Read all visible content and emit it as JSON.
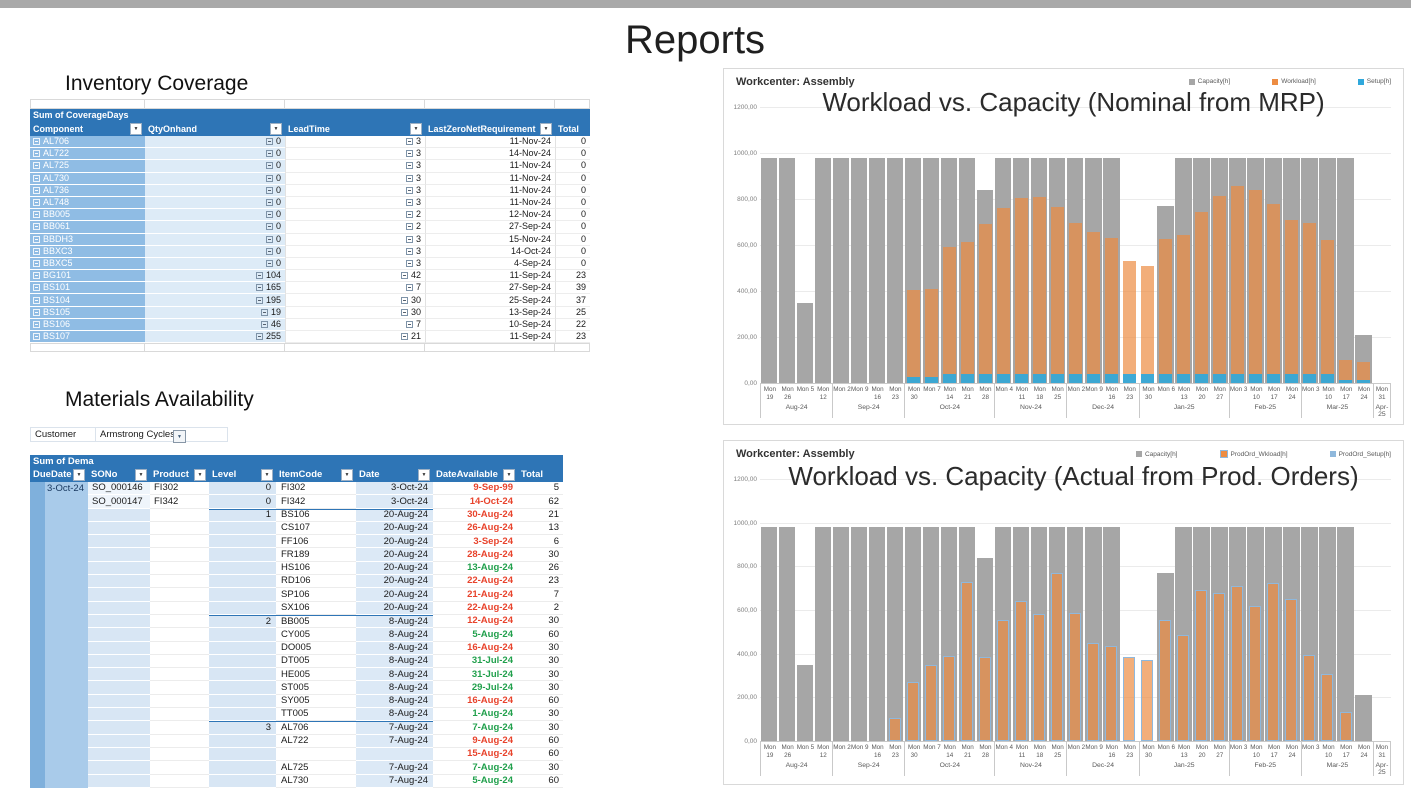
{
  "page": {
    "title": "Reports"
  },
  "colors": {
    "header_blue": "#2E75B6",
    "row_label_blue": "#8FBCE4",
    "light_cell_blue": "#DDEBF7",
    "capacity": "#A6A6A6",
    "workload": "#ED8C42",
    "setup": "#2FA8DC",
    "prodord_border": "#8FB8DC",
    "late_red": "#E8432C",
    "ontime_green": "#21A04C"
  },
  "inventory": {
    "heading": "Inventory Coverage",
    "pivot_title": "Sum of CoverageDays",
    "columns": [
      "Component",
      "QtyOnhand",
      "LeadTime",
      "LastZeroNetRequirement",
      "Total"
    ],
    "rows": [
      {
        "c": "AL706",
        "q": "0",
        "l": "3",
        "z": "11-Nov-24",
        "t": "0"
      },
      {
        "c": "AL722",
        "q": "0",
        "l": "3",
        "z": "14-Nov-24",
        "t": "0"
      },
      {
        "c": "AL725",
        "q": "0",
        "l": "3",
        "z": "11-Nov-24",
        "t": "0"
      },
      {
        "c": "AL730",
        "q": "0",
        "l": "3",
        "z": "11-Nov-24",
        "t": "0"
      },
      {
        "c": "AL736",
        "q": "0",
        "l": "3",
        "z": "11-Nov-24",
        "t": "0"
      },
      {
        "c": "AL748",
        "q": "0",
        "l": "3",
        "z": "11-Nov-24",
        "t": "0"
      },
      {
        "c": "BB005",
        "q": "0",
        "l": "2",
        "z": "12-Nov-24",
        "t": "0"
      },
      {
        "c": "BB061",
        "q": "0",
        "l": "2",
        "z": "27-Sep-24",
        "t": "0"
      },
      {
        "c": "BBDH3",
        "q": "0",
        "l": "3",
        "z": "15-Nov-24",
        "t": "0"
      },
      {
        "c": "BBXC3",
        "q": "0",
        "l": "3",
        "z": "14-Oct-24",
        "t": "0"
      },
      {
        "c": "BBXC5",
        "q": "0",
        "l": "3",
        "z": "4-Sep-24",
        "t": "0"
      },
      {
        "c": "BG101",
        "q": "104",
        "l": "42",
        "z": "11-Sep-24",
        "t": "23"
      },
      {
        "c": "BS101",
        "q": "165",
        "l": "7",
        "z": "27-Sep-24",
        "t": "39"
      },
      {
        "c": "BS104",
        "q": "195",
        "l": "30",
        "z": "25-Sep-24",
        "t": "37"
      },
      {
        "c": "BS105",
        "q": "19",
        "l": "30",
        "z": "13-Sep-24",
        "t": "25"
      },
      {
        "c": "BS106",
        "q": "46",
        "l": "7",
        "z": "10-Sep-24",
        "t": "22"
      },
      {
        "c": "BS107",
        "q": "255",
        "l": "21",
        "z": "11-Sep-24",
        "t": "23"
      }
    ]
  },
  "materials": {
    "heading": "Materials Availability",
    "filter_label": "Customer",
    "filter_value": "Armstrong Cycles",
    "pivot_title": "Sum of Dema",
    "columns": [
      "DueDate",
      "SONo",
      "Product",
      "Level",
      "ItemCode",
      "Date",
      "DateAvailable",
      "Total"
    ],
    "rows": [
      {
        "due": "3-Oct-24",
        "so": "SO_000146",
        "product": "FI302",
        "level": "0",
        "item": "FI302",
        "date": "3-Oct-24",
        "avail": "9-Sep-99",
        "status": "late",
        "total": "5",
        "gs": false
      },
      {
        "due": "",
        "so": "SO_000147",
        "product": "FI342",
        "level": "0",
        "item": "FI342",
        "date": "3-Oct-24",
        "avail": "14-Oct-24",
        "status": "late",
        "total": "62",
        "gs": false
      },
      {
        "due": "",
        "so": "",
        "product": "",
        "level": "1",
        "item": "BS106",
        "date": "20-Aug-24",
        "avail": "30-Aug-24",
        "status": "late",
        "total": "21",
        "gs": true
      },
      {
        "due": "",
        "so": "",
        "product": "",
        "level": "",
        "item": "CS107",
        "date": "20-Aug-24",
        "avail": "26-Aug-24",
        "status": "late",
        "total": "13",
        "gs": false
      },
      {
        "due": "",
        "so": "",
        "product": "",
        "level": "",
        "item": "FF106",
        "date": "20-Aug-24",
        "avail": "3-Sep-24",
        "status": "late",
        "total": "6",
        "gs": false
      },
      {
        "due": "",
        "so": "",
        "product": "",
        "level": "",
        "item": "FR189",
        "date": "20-Aug-24",
        "avail": "28-Aug-24",
        "status": "late",
        "total": "30",
        "gs": false
      },
      {
        "due": "",
        "so": "",
        "product": "",
        "level": "",
        "item": "HS106",
        "date": "20-Aug-24",
        "avail": "13-Aug-24",
        "status": "ontime",
        "total": "26",
        "gs": false
      },
      {
        "due": "",
        "so": "",
        "product": "",
        "level": "",
        "item": "RD106",
        "date": "20-Aug-24",
        "avail": "22-Aug-24",
        "status": "late",
        "total": "23",
        "gs": false
      },
      {
        "due": "",
        "so": "",
        "product": "",
        "level": "",
        "item": "SP106",
        "date": "20-Aug-24",
        "avail": "21-Aug-24",
        "status": "late",
        "total": "7",
        "gs": false
      },
      {
        "due": "",
        "so": "",
        "product": "",
        "level": "",
        "item": "SX106",
        "date": "20-Aug-24",
        "avail": "22-Aug-24",
        "status": "late",
        "total": "2",
        "gs": false
      },
      {
        "due": "",
        "so": "",
        "product": "",
        "level": "2",
        "item": "BB005",
        "date": "8-Aug-24",
        "avail": "12-Aug-24",
        "status": "late",
        "total": "30",
        "gs": true
      },
      {
        "due": "",
        "so": "",
        "product": "",
        "level": "",
        "item": "CY005",
        "date": "8-Aug-24",
        "avail": "5-Aug-24",
        "status": "ontime",
        "total": "60",
        "gs": false
      },
      {
        "due": "",
        "so": "",
        "product": "",
        "level": "",
        "item": "DO005",
        "date": "8-Aug-24",
        "avail": "16-Aug-24",
        "status": "late",
        "total": "30",
        "gs": false
      },
      {
        "due": "",
        "so": "",
        "product": "",
        "level": "",
        "item": "DT005",
        "date": "8-Aug-24",
        "avail": "31-Jul-24",
        "status": "ontime",
        "total": "30",
        "gs": false
      },
      {
        "due": "",
        "so": "",
        "product": "",
        "level": "",
        "item": "HE005",
        "date": "8-Aug-24",
        "avail": "31-Jul-24",
        "status": "ontime",
        "total": "30",
        "gs": false
      },
      {
        "due": "",
        "so": "",
        "product": "",
        "level": "",
        "item": "ST005",
        "date": "8-Aug-24",
        "avail": "29-Jul-24",
        "status": "ontime",
        "total": "30",
        "gs": false
      },
      {
        "due": "",
        "so": "",
        "product": "",
        "level": "",
        "item": "SY005",
        "date": "8-Aug-24",
        "avail": "16-Aug-24",
        "status": "late",
        "total": "60",
        "gs": false
      },
      {
        "due": "",
        "so": "",
        "product": "",
        "level": "",
        "item": "TT005",
        "date": "8-Aug-24",
        "avail": "1-Aug-24",
        "status": "ontime",
        "total": "30",
        "gs": false
      },
      {
        "due": "",
        "so": "",
        "product": "",
        "level": "3",
        "item": "AL706",
        "date": "7-Aug-24",
        "avail": "7-Aug-24",
        "status": "ontime",
        "total": "30",
        "gs": true
      },
      {
        "due": "",
        "so": "",
        "product": "",
        "level": "",
        "item": "AL722",
        "date": "7-Aug-24",
        "avail": "9-Aug-24",
        "status": "late",
        "total": "60",
        "gs": false
      },
      {
        "due": "",
        "so": "",
        "product": "",
        "level": "",
        "item": "",
        "date": "",
        "avail": "15-Aug-24",
        "status": "late",
        "total": "60",
        "gs": false
      },
      {
        "due": "",
        "so": "",
        "product": "",
        "level": "",
        "item": "AL725",
        "date": "7-Aug-24",
        "avail": "7-Aug-24",
        "status": "ontime",
        "total": "30",
        "gs": false
      },
      {
        "due": "",
        "so": "",
        "product": "",
        "level": "",
        "item": "AL730",
        "date": "7-Aug-24",
        "avail": "5-Aug-24",
        "status": "ontime",
        "total": "60",
        "gs": false
      }
    ]
  },
  "chart_data": [
    {
      "type": "bar",
      "title": "Workcenter: Assembly",
      "overlay_title": "Workload vs. Capacity (Nominal from MRP)",
      "legend": [
        "Capacity[h]",
        "Workload[h]",
        "Setup[h]"
      ],
      "ylim": [
        0,
        1200
      ],
      "ytick_labels": [
        "1200,00",
        "1000,00",
        "800,00",
        "600,00",
        "400,00",
        "200,00",
        "0,00"
      ],
      "grid": true,
      "legend_position": "top-right",
      "month_groups": [
        {
          "label": "Aug-24",
          "count": 4
        },
        {
          "label": "Sep-24",
          "count": 4
        },
        {
          "label": "Oct-24",
          "count": 5
        },
        {
          "label": "Nov-24",
          "count": 4
        },
        {
          "label": "Dec-24",
          "count": 4
        },
        {
          "label": "Jan-25",
          "count": 5
        },
        {
          "label": "Feb-25",
          "count": 4
        },
        {
          "label": "Mar-25",
          "count": 4
        },
        {
          "label": "Apr-25",
          "count": 1
        }
      ],
      "x": [
        "Mon\n19",
        "Mon\n26",
        "Mon 5",
        "Mon\n12",
        "Mon 2",
        "Mon 9",
        "Mon\n16",
        "Mon\n23",
        "Mon\n30",
        "Mon 7",
        "Mon\n14",
        "Mon\n21",
        "Mon\n28",
        "Mon 4",
        "Mon\n11",
        "Mon\n18",
        "Mon\n25",
        "Mon 2",
        "Mon 9",
        "Mon\n16",
        "Mon\n23",
        "Mon\n30",
        "Mon 6",
        "Mon\n13",
        "Mon\n20",
        "Mon\n27",
        "Mon 3",
        "Mon\n10",
        "Mon\n17",
        "Mon\n24",
        "Mon 3",
        "Mon\n10",
        "Mon\n17",
        "Mon\n24",
        "Mon\n31"
      ],
      "series": [
        {
          "name": "Capacity[h]",
          "values": [
            980,
            980,
            350,
            980,
            980,
            980,
            980,
            980,
            980,
            980,
            980,
            980,
            840,
            980,
            980,
            980,
            980,
            980,
            980,
            980,
            0,
            0,
            770,
            980,
            980,
            980,
            980,
            980,
            980,
            980,
            980,
            980,
            980,
            210,
            0
          ]
        },
        {
          "name": "Workload[h]",
          "values": [
            0,
            0,
            0,
            0,
            0,
            0,
            0,
            0,
            405,
            410,
            590,
            615,
            690,
            760,
            805,
            810,
            765,
            695,
            655,
            630,
            530,
            510,
            625,
            645,
            745,
            815,
            855,
            840,
            780,
            710,
            695,
            620,
            100,
            90,
            0
          ]
        },
        {
          "name": "Setup[h]",
          "values": [
            0,
            0,
            0,
            0,
            0,
            0,
            0,
            0,
            28,
            28,
            40,
            40,
            40,
            40,
            40,
            40,
            40,
            40,
            40,
            40,
            40,
            40,
            40,
            40,
            40,
            40,
            40,
            40,
            40,
            40,
            40,
            40,
            15,
            15,
            0
          ]
        }
      ]
    },
    {
      "type": "bar",
      "title": "Workcenter: Assembly",
      "overlay_title": "Workload vs. Capacity (Actual from Prod. Orders)",
      "legend": [
        "Capacity[h]",
        "ProdOrd_Wkload[h]",
        "ProdOrd_Setup[h]"
      ],
      "ylim": [
        0,
        1200
      ],
      "ytick_labels": [
        "1200,00",
        "1000,00",
        "800,00",
        "600,00",
        "400,00",
        "200,00",
        "0,00"
      ],
      "grid": true,
      "legend_position": "top-right",
      "month_groups": [
        {
          "label": "Aug-24",
          "count": 4
        },
        {
          "label": "Sep-24",
          "count": 4
        },
        {
          "label": "Oct-24",
          "count": 5
        },
        {
          "label": "Nov-24",
          "count": 4
        },
        {
          "label": "Dec-24",
          "count": 4
        },
        {
          "label": "Jan-25",
          "count": 5
        },
        {
          "label": "Feb-25",
          "count": 4
        },
        {
          "label": "Mar-25",
          "count": 4
        },
        {
          "label": "Apr-25",
          "count": 1
        }
      ],
      "x": [
        "Mon\n19",
        "Mon\n26",
        "Mon 5",
        "Mon\n12",
        "Mon 2",
        "Mon 9",
        "Mon\n16",
        "Mon\n23",
        "Mon\n30",
        "Mon 7",
        "Mon\n14",
        "Mon\n21",
        "Mon\n28",
        "Mon 4",
        "Mon\n11",
        "Mon\n18",
        "Mon\n25",
        "Mon 2",
        "Mon 9",
        "Mon\n16",
        "Mon\n23",
        "Mon\n30",
        "Mon 6",
        "Mon\n13",
        "Mon\n20",
        "Mon\n27",
        "Mon 3",
        "Mon\n10",
        "Mon\n17",
        "Mon\n24",
        "Mon 3",
        "Mon\n10",
        "Mon\n17",
        "Mon\n24",
        "Mon\n31"
      ],
      "series": [
        {
          "name": "Capacity[h]",
          "values": [
            980,
            980,
            350,
            980,
            980,
            980,
            980,
            980,
            980,
            980,
            980,
            980,
            840,
            980,
            980,
            980,
            980,
            980,
            980,
            980,
            0,
            0,
            770,
            980,
            980,
            980,
            980,
            980,
            980,
            980,
            980,
            980,
            980,
            210,
            0
          ]
        },
        {
          "name": "ProdOrd_Wkload[h]",
          "values": [
            0,
            0,
            0,
            0,
            0,
            0,
            0,
            105,
            270,
            350,
            390,
            730,
            385,
            555,
            640,
            580,
            770,
            585,
            450,
            435,
            385,
            370,
            555,
            485,
            690,
            680,
            712,
            620,
            726,
            650,
            395,
            305,
            135,
            0,
            0
          ]
        },
        {
          "name": "ProdOrd_Setup[h]",
          "values": [
            0,
            0,
            0,
            0,
            0,
            0,
            0,
            0,
            0,
            0,
            0,
            0,
            0,
            0,
            0,
            0,
            0,
            0,
            0,
            0,
            0,
            0,
            0,
            0,
            0,
            0,
            0,
            0,
            0,
            0,
            0,
            0,
            0,
            0,
            0
          ]
        }
      ]
    }
  ]
}
